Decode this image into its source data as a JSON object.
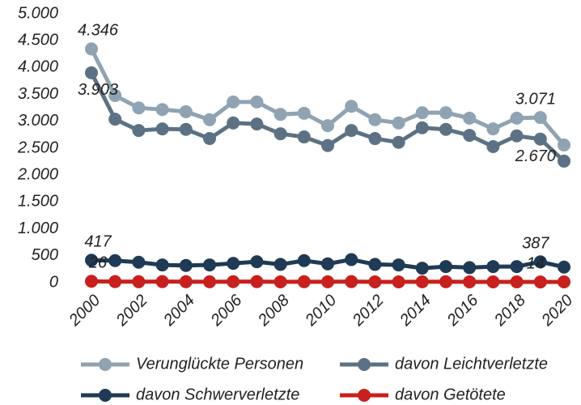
{
  "chart_data": {
    "type": "line",
    "x": [
      2000,
      2001,
      2002,
      2003,
      2004,
      2005,
      2006,
      2007,
      2008,
      2009,
      2010,
      2011,
      2012,
      2013,
      2014,
      2015,
      2016,
      2017,
      2018,
      2019,
      2020
    ],
    "xlim": [
      2000,
      2020
    ],
    "xticks": [
      2000,
      2002,
      2004,
      2006,
      2008,
      2010,
      2012,
      2014,
      2016,
      2018,
      2020
    ],
    "ylim": [
      0,
      5000
    ],
    "yticks": [
      0,
      500,
      {
        "value": 1000,
        "label": "1.000"
      },
      {
        "value": 1500,
        "label": "1.500"
      },
      {
        "value": 2000,
        "label": "2.000"
      },
      {
        "value": 2500,
        "label": "2.500"
      },
      {
        "value": 3000,
        "label": "3.000"
      },
      {
        "value": 3500,
        "label": "3.500"
      },
      {
        "value": 4000,
        "label": "4.000"
      },
      {
        "value": 4500,
        "label": "4.500"
      },
      {
        "value": 5000,
        "label": "5.000"
      }
    ],
    "grid": false,
    "legend": "bottom",
    "series": [
      {
        "name": "Verunglückte Personen",
        "color": "#8fa3b2",
        "values": [
          4346,
          3480,
          3250,
          3220,
          3180,
          3030,
          3360,
          3360,
          3130,
          3150,
          2920,
          3280,
          3030,
          2970,
          3160,
          3160,
          3060,
          2860,
          3060,
          3071,
          2560
        ],
        "value_labels": [
          "4.346",
          null,
          null,
          null,
          null,
          null,
          null,
          null,
          null,
          null,
          null,
          null,
          null,
          null,
          null,
          null,
          null,
          null,
          null,
          "3.071",
          null
        ]
      },
      {
        "name": "davon Leichtverletzte",
        "color": "#5c7284",
        "values": [
          3903,
          3040,
          2830,
          2860,
          2850,
          2680,
          2970,
          2950,
          2770,
          2710,
          2550,
          2830,
          2680,
          2610,
          2880,
          2850,
          2740,
          2530,
          2730,
          2670,
          2260
        ],
        "value_labels": [
          "3.903",
          null,
          null,
          null,
          null,
          null,
          null,
          null,
          null,
          null,
          null,
          null,
          null,
          null,
          null,
          null,
          null,
          null,
          null,
          "2.670",
          null
        ]
      },
      {
        "name": "davon Schwerverletzte",
        "color": "#1e3a55",
        "values": [
          417,
          410,
          380,
          330,
          320,
          330,
          360,
          390,
          340,
          410,
          350,
          430,
          340,
          330,
          270,
          300,
          280,
          300,
          300,
          387,
          290
        ],
        "value_labels": [
          "417",
          null,
          null,
          null,
          null,
          null,
          null,
          null,
          null,
          null,
          null,
          null,
          null,
          null,
          null,
          null,
          null,
          null,
          null,
          "387",
          null
        ]
      },
      {
        "name": "davon Getötete",
        "color": "#c8201e",
        "values": [
          26,
          20,
          18,
          20,
          18,
          17,
          19,
          20,
          16,
          18,
          17,
          20,
          16,
          15,
          17,
          18,
          16,
          15,
          16,
          14,
          15
        ],
        "value_labels": [
          "26",
          null,
          null,
          null,
          null,
          null,
          null,
          null,
          null,
          null,
          null,
          null,
          null,
          null,
          null,
          null,
          null,
          null,
          null,
          "14",
          null
        ]
      }
    ]
  }
}
